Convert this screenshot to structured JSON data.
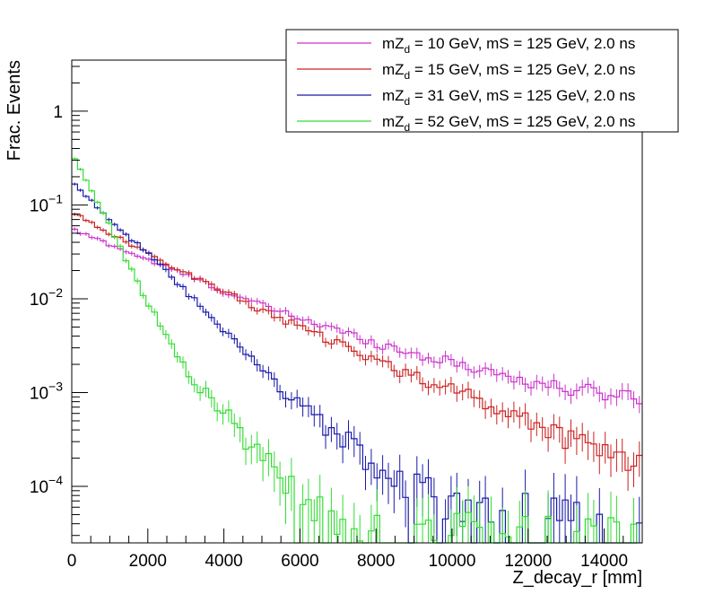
{
  "chart_data": {
    "type": "line",
    "style": "histogram-step-with-error-bars",
    "xlabel": "Z_decay_r [mm]",
    "ylabel": "Frac. Events",
    "xlim": [
      0,
      15000
    ],
    "ylim": [
      2.5e-05,
      3.5
    ],
    "yscale": "log",
    "grid": false,
    "legend_position": "top-right",
    "x_ticks": [
      {
        "value": 0,
        "label": "0"
      },
      {
        "value": 2000,
        "label": "2000"
      },
      {
        "value": 4000,
        "label": "4000"
      },
      {
        "value": 6000,
        "label": "6000"
      },
      {
        "value": 8000,
        "label": "8000"
      },
      {
        "value": 10000,
        "label": "10000"
      },
      {
        "value": 12000,
        "label": "12000"
      },
      {
        "value": 14000,
        "label": "14000"
      }
    ],
    "y_ticks": [
      {
        "value": 0.0001,
        "base": "10",
        "exp": "−4"
      },
      {
        "value": 0.001,
        "base": "10",
        "exp": "−3"
      },
      {
        "value": 0.01,
        "base": "10",
        "exp": "−2"
      },
      {
        "value": 0.1,
        "base": "10",
        "exp": "−1"
      },
      {
        "value": 1,
        "base": "1",
        "exp": ""
      }
    ],
    "x": [
      0,
      1000,
      2000,
      3000,
      4000,
      5000,
      6000,
      7000,
      8000,
      9000,
      10000,
      11000,
      12000,
      13000,
      14000,
      15000
    ],
    "series": [
      {
        "label_pre": "mZ",
        "label_sub": "d",
        "label_post": " = 10 GeV, mS = 125 GeV, 2.0 ns",
        "color": "#cc33cc",
        "values": [
          0.055,
          0.038,
          0.026,
          0.018,
          0.012,
          0.0085,
          0.0062,
          0.0046,
          0.0034,
          0.0026,
          0.0021,
          0.0017,
          0.0013,
          0.0011,
          0.001,
          0.0009
        ]
      },
      {
        "label_pre": "mZ",
        "label_sub": "d",
        "label_post": " = 15 GeV, mS = 125 GeV, 2.0 ns",
        "color": "#cc2222",
        "values": [
          0.085,
          0.05,
          0.03,
          0.019,
          0.012,
          0.0075,
          0.005,
          0.0033,
          0.0022,
          0.0015,
          0.0011,
          0.00075,
          0.0005,
          0.00035,
          0.00025,
          0.0002
        ]
      },
      {
        "label_pre": "mZ",
        "label_sub": "d",
        "label_post": " = 31 GeV, mS = 125 GeV, 2.0 ns",
        "color": "#1a1aaa",
        "values": [
          0.18,
          0.07,
          0.03,
          0.012,
          0.0045,
          0.0017,
          0.00075,
          0.00035,
          0.00018,
          0.00011,
          8e-05,
          6e-05,
          5e-05,
          4e-05,
          3.5e-05,
          3e-05
        ]
      },
      {
        "label_pre": "mZ",
        "label_sub": "d",
        "label_post": " = 52 GeV, mS = 125 GeV, 2.0 ns",
        "color": "#33dd33",
        "values": [
          0.35,
          0.06,
          0.009,
          0.0018,
          0.0006,
          0.00022,
          8e-05,
          5e-05,
          3e-05,
          3e-05,
          3e-05,
          3e-05,
          3e-05,
          3e-05,
          3e-05,
          3e-05
        ]
      }
    ]
  }
}
